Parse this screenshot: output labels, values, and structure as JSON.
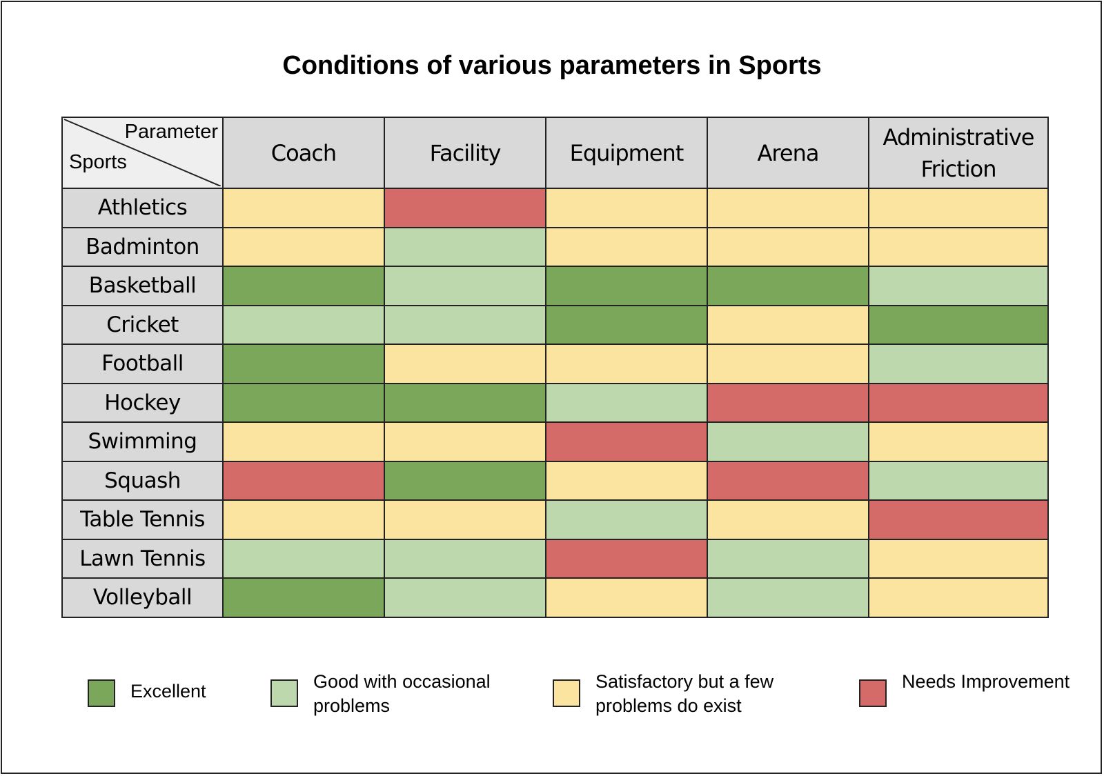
{
  "chart_data": {
    "type": "heatmap",
    "title": "Conditions of various parameters in Sports",
    "corner": {
      "column_axis": "Parameter",
      "row_axis": "Sports"
    },
    "columns": [
      "Coach",
      "Facility",
      "Equipment",
      "Arena",
      "Administrative Friction"
    ],
    "rows": [
      "Athletics",
      "Badminton",
      "Basketball",
      "Cricket",
      "Football",
      "Hockey",
      "Swimming",
      "Squash",
      "Table Tennis",
      "Lawn Tennis",
      "Volleyball"
    ],
    "values": [
      [
        "satisfactory",
        "needs_improvement",
        "satisfactory",
        "satisfactory",
        "satisfactory"
      ],
      [
        "satisfactory",
        "good",
        "satisfactory",
        "satisfactory",
        "satisfactory"
      ],
      [
        "excellent",
        "good",
        "excellent",
        "excellent",
        "good"
      ],
      [
        "good",
        "good",
        "excellent",
        "satisfactory",
        "excellent"
      ],
      [
        "excellent",
        "satisfactory",
        "satisfactory",
        "satisfactory",
        "good"
      ],
      [
        "excellent",
        "excellent",
        "good",
        "needs_improvement",
        "needs_improvement"
      ],
      [
        "satisfactory",
        "satisfactory",
        "needs_improvement",
        "good",
        "satisfactory"
      ],
      [
        "needs_improvement",
        "excellent",
        "satisfactory",
        "needs_improvement",
        "good"
      ],
      [
        "satisfactory",
        "satisfactory",
        "good",
        "satisfactory",
        "needs_improvement"
      ],
      [
        "good",
        "good",
        "needs_improvement",
        "good",
        "satisfactory"
      ],
      [
        "excellent",
        "good",
        "satisfactory",
        "good",
        "satisfactory"
      ]
    ],
    "legend": [
      {
        "key": "excellent",
        "label": "Excellent",
        "color": "#7aa75a"
      },
      {
        "key": "good",
        "label": "Good with occasional problems",
        "color": "#bed8ae"
      },
      {
        "key": "satisfactory",
        "label": "Satisfactory but a few problems do exist",
        "color": "#fbe3a0"
      },
      {
        "key": "needs_improvement",
        "label": "Needs Improvement",
        "color": "#d46b68"
      }
    ],
    "legend_position": "bottom"
  }
}
